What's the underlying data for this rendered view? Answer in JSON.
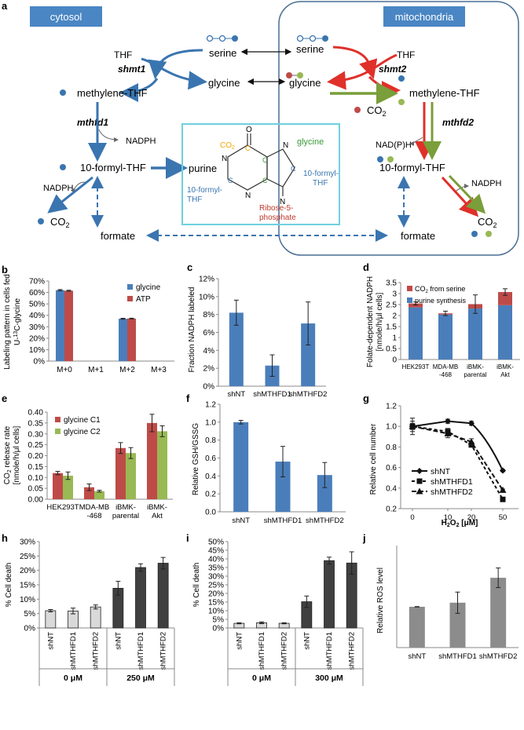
{
  "colors": {
    "blue": "#4a7ebb",
    "red": "#be4b48",
    "green": "#98b954",
    "diagram_blue": "#3a75b0",
    "diagram_red": "#e0302a",
    "diagram_green": "#7a9e3a",
    "light_gray": "#d9d9d9",
    "dark_gray": "#404040",
    "mid_gray": "#8c8c8c",
    "box_cyan": "#6fd0e0",
    "orange": "#f0a500"
  },
  "panels": {
    "a": "a",
    "b": "b",
    "c": "c",
    "d": "d",
    "e": "e",
    "f": "f",
    "g": "g",
    "h": "h",
    "i": "i",
    "j": "j"
  },
  "diagram": {
    "cytosol": "cytosol",
    "mitochondria": "mitochondria",
    "serine": "serine",
    "serine_m": "serine",
    "thf": "THF",
    "thf_m": "THF",
    "shmt1": "shmt1",
    "shmt2": "shmt2",
    "glycine": "glycine",
    "glycine_m": "glycine",
    "methylene_thf": "methylene-THF",
    "methylene_thf_m": "methylene-THF",
    "co2_m": "CO",
    "mthfd1": "mthfd1",
    "mthfd2": "mthfd2",
    "nadph1": "NADPH",
    "nadph2": "NADPH",
    "nadph3": "NADPH",
    "nadp_h": "NAD(P)H",
    "formyl_thf": "10-formyl-THF",
    "formyl_thf_m": "10-formyl-THF",
    "purine": "purine",
    "co2_c": "CO",
    "co2_m2": "CO",
    "formate": "formate",
    "formate_m": "formate",
    "sub2": "2",
    "purine_box": {
      "co2": "CO",
      "sub2": "2",
      "o": "O",
      "n1": "N",
      "n2": "N",
      "n3": "N",
      "n4": "N",
      "glycine": "glycine",
      "formyl_right_1": "10-formyl-",
      "formyl_right_2": "THF",
      "formyl_left_1": "10-formyl-",
      "formyl_left_2": "THF",
      "ribose_1": "Ribose-5-",
      "ribose_2": "phosphate",
      "c": "C"
    }
  },
  "chart_data": [
    {
      "panel": "b",
      "type": "bar",
      "ylabel": "Labeling pattern in cells fed U-13C-glycine",
      "ylabel_line1": "Labeling pattern in cells fed",
      "ylabel_line2": "U-",
      "ylabel_sup": "13",
      "ylabel_line2b": "C-glycine",
      "categories": [
        "M+0",
        "M+1",
        "M+2",
        "M+3"
      ],
      "series": [
        {
          "name": "glycine",
          "values": [
            0.62,
            0,
            0.37,
            0
          ],
          "errors": [
            0.005,
            0,
            0.004,
            0
          ]
        },
        {
          "name": "ATP",
          "values": [
            0.615,
            0,
            0.372,
            0
          ],
          "errors": [
            0.004,
            0,
            0.003,
            0
          ]
        }
      ],
      "ylim": [
        0,
        0.7
      ],
      "ticks": [
        "0%",
        "10%",
        "20%",
        "30%",
        "40%",
        "50%",
        "60%",
        "70%"
      ]
    },
    {
      "panel": "c",
      "type": "bar",
      "ylabel": "Fraction NADPH labeled",
      "categories": [
        "shNT",
        "shMTHFD1",
        "shMTHFD2"
      ],
      "values": [
        0.082,
        0.023,
        0.07
      ],
      "errors": [
        0.014,
        0.012,
        0.024
      ],
      "ylim": [
        0,
        0.12
      ],
      "ticks": [
        "0%",
        "2%",
        "4%",
        "6%",
        "8%",
        "10%",
        "12%"
      ]
    },
    {
      "panel": "d",
      "type": "bar",
      "ylabel_line1": "Folate-dependent NADPH",
      "ylabel_line2": "[nmole/h/μl cells]",
      "categories": [
        "HEK293T",
        "MDA-MB\n-468",
        "iBMK-\nparental",
        "iBMK-\nAkt"
      ],
      "series": [
        {
          "name": "CO2 from serine",
          "values": [
            0.18,
            0.05,
            0.2,
            0.6
          ]
        },
        {
          "name": "purine synthesis",
          "values": [
            2.37,
            2.05,
            2.32,
            2.47
          ]
        }
      ],
      "totals_errors": [
        0.07,
        0.1,
        0.42,
        0.15
      ],
      "legend": [
        "CO",
        "2",
        " from serine",
        "purine synthesis"
      ],
      "ylim": [
        0,
        3.5
      ],
      "ticks": [
        "0",
        "0.5",
        "1",
        "1.5",
        "2",
        "2.5",
        "3",
        "3.5"
      ]
    },
    {
      "panel": "e",
      "type": "bar",
      "ylabel_line1": "CO",
      "ylabel_sub": "2",
      "ylabel_line1b": " release rate",
      "ylabel_line2": "[nmole/h/μl cells]",
      "categories": [
        "HEK293T",
        "MDA-MB\n-468",
        "iBMK-\nparental",
        "iBMK-\nAkt"
      ],
      "series": [
        {
          "name": "glycine C1",
          "values": [
            0.12,
            0.055,
            0.235,
            0.35
          ],
          "errors": [
            0.008,
            0.015,
            0.025,
            0.04
          ]
        },
        {
          "name": "glycine C2",
          "values": [
            0.108,
            0.037,
            0.212,
            0.312
          ],
          "errors": [
            0.017,
            0.004,
            0.025,
            0.025
          ]
        }
      ],
      "ylim": [
        0,
        0.4
      ],
      "ticks": [
        "0.00",
        "0.05",
        "0.10",
        "0.15",
        "0.20",
        "0.25",
        "0.30",
        "0.35",
        "0.40"
      ]
    },
    {
      "panel": "f",
      "type": "bar",
      "ylabel": "Relative GSH/GSSG",
      "categories": [
        "shNT",
        "shMTHFD1",
        "shMTHFD2"
      ],
      "values": [
        1.0,
        0.56,
        0.41
      ],
      "errors": [
        0.02,
        0.17,
        0.14
      ],
      "ylim": [
        0,
        1.2
      ],
      "ticks": [
        "0.0",
        "0.2",
        "0.4",
        "0.6",
        "0.8",
        "1.0",
        "1.2"
      ]
    },
    {
      "panel": "g",
      "type": "line",
      "ylabel": "Relative cell number",
      "xlabel": "H",
      "xlabel_sub": "2",
      "xlabel_mid": "O",
      "xlabel_sub2": "2",
      "xlabel_end": "  [μM]",
      "x": [
        "0",
        "10",
        "20",
        "50"
      ],
      "series": [
        {
          "name": "shNT",
          "values": [
            1.0,
            1.05,
            1.03,
            0.57
          ],
          "errors": [
            0.03,
            0.02,
            0.02,
            0.01
          ]
        },
        {
          "name": "shMTHFD1",
          "values": [
            1.0,
            0.95,
            0.82,
            0.29
          ],
          "errors": [
            0.08,
            0.03,
            0.02,
            0.01
          ]
        },
        {
          "name": "shMTHFD2",
          "values": [
            1.0,
            0.93,
            0.85,
            0.38
          ],
          "errors": [
            0.05,
            0.04,
            0.03,
            0.01
          ]
        }
      ],
      "ylim": [
        0.2,
        1.2
      ],
      "ticks": [
        "0.2",
        "0.4",
        "0.6",
        "0.8",
        "1.0",
        "1.2"
      ]
    },
    {
      "panel": "h",
      "type": "bar",
      "ylabel": "% Cell death",
      "categories": [
        "shNT",
        "shMTHFD1",
        "shMTHFD2",
        "shNT",
        "shMTHFD1",
        "shMTHFD2"
      ],
      "values": [
        0.06,
        0.059,
        0.073,
        0.138,
        0.21,
        0.225
      ],
      "errors": [
        0.004,
        0.01,
        0.007,
        0.024,
        0.013,
        0.02
      ],
      "groups": [
        "0 μM",
        "250 μM"
      ],
      "ylim": [
        0,
        0.3
      ],
      "ticks": [
        "0%",
        "5%",
        "10%",
        "15%",
        "20%",
        "25%",
        "30%"
      ]
    },
    {
      "panel": "i",
      "type": "bar",
      "ylabel": "% Cell death",
      "categories": [
        "shNT",
        "shMTHFD1",
        "shMTHFD2",
        "shNT",
        "shMTHFD1",
        "shMTHFD2"
      ],
      "values": [
        0.027,
        0.03,
        0.027,
        0.152,
        0.39,
        0.376
      ],
      "errors": [
        0.003,
        0.005,
        0.003,
        0.033,
        0.02,
        0.065
      ],
      "groups": [
        "0 μM",
        "300 μM"
      ],
      "ylim": [
        0,
        0.5
      ],
      "ticks": [
        "0%",
        "5%",
        "10%",
        "15%",
        "20%",
        "25%",
        "30%",
        "35%",
        "40%",
        "45%",
        "50%"
      ]
    },
    {
      "panel": "j",
      "type": "bar",
      "ylabel": "Relative ROS level",
      "categories": [
        "shNT",
        "shMTHFD1",
        "shMTHFD2"
      ],
      "values": [
        1.0,
        1.1,
        1.71
      ],
      "errors": [
        0.005,
        0.26,
        0.24
      ],
      "ylim": [
        0,
        2.5
      ],
      "ticks": []
    }
  ]
}
